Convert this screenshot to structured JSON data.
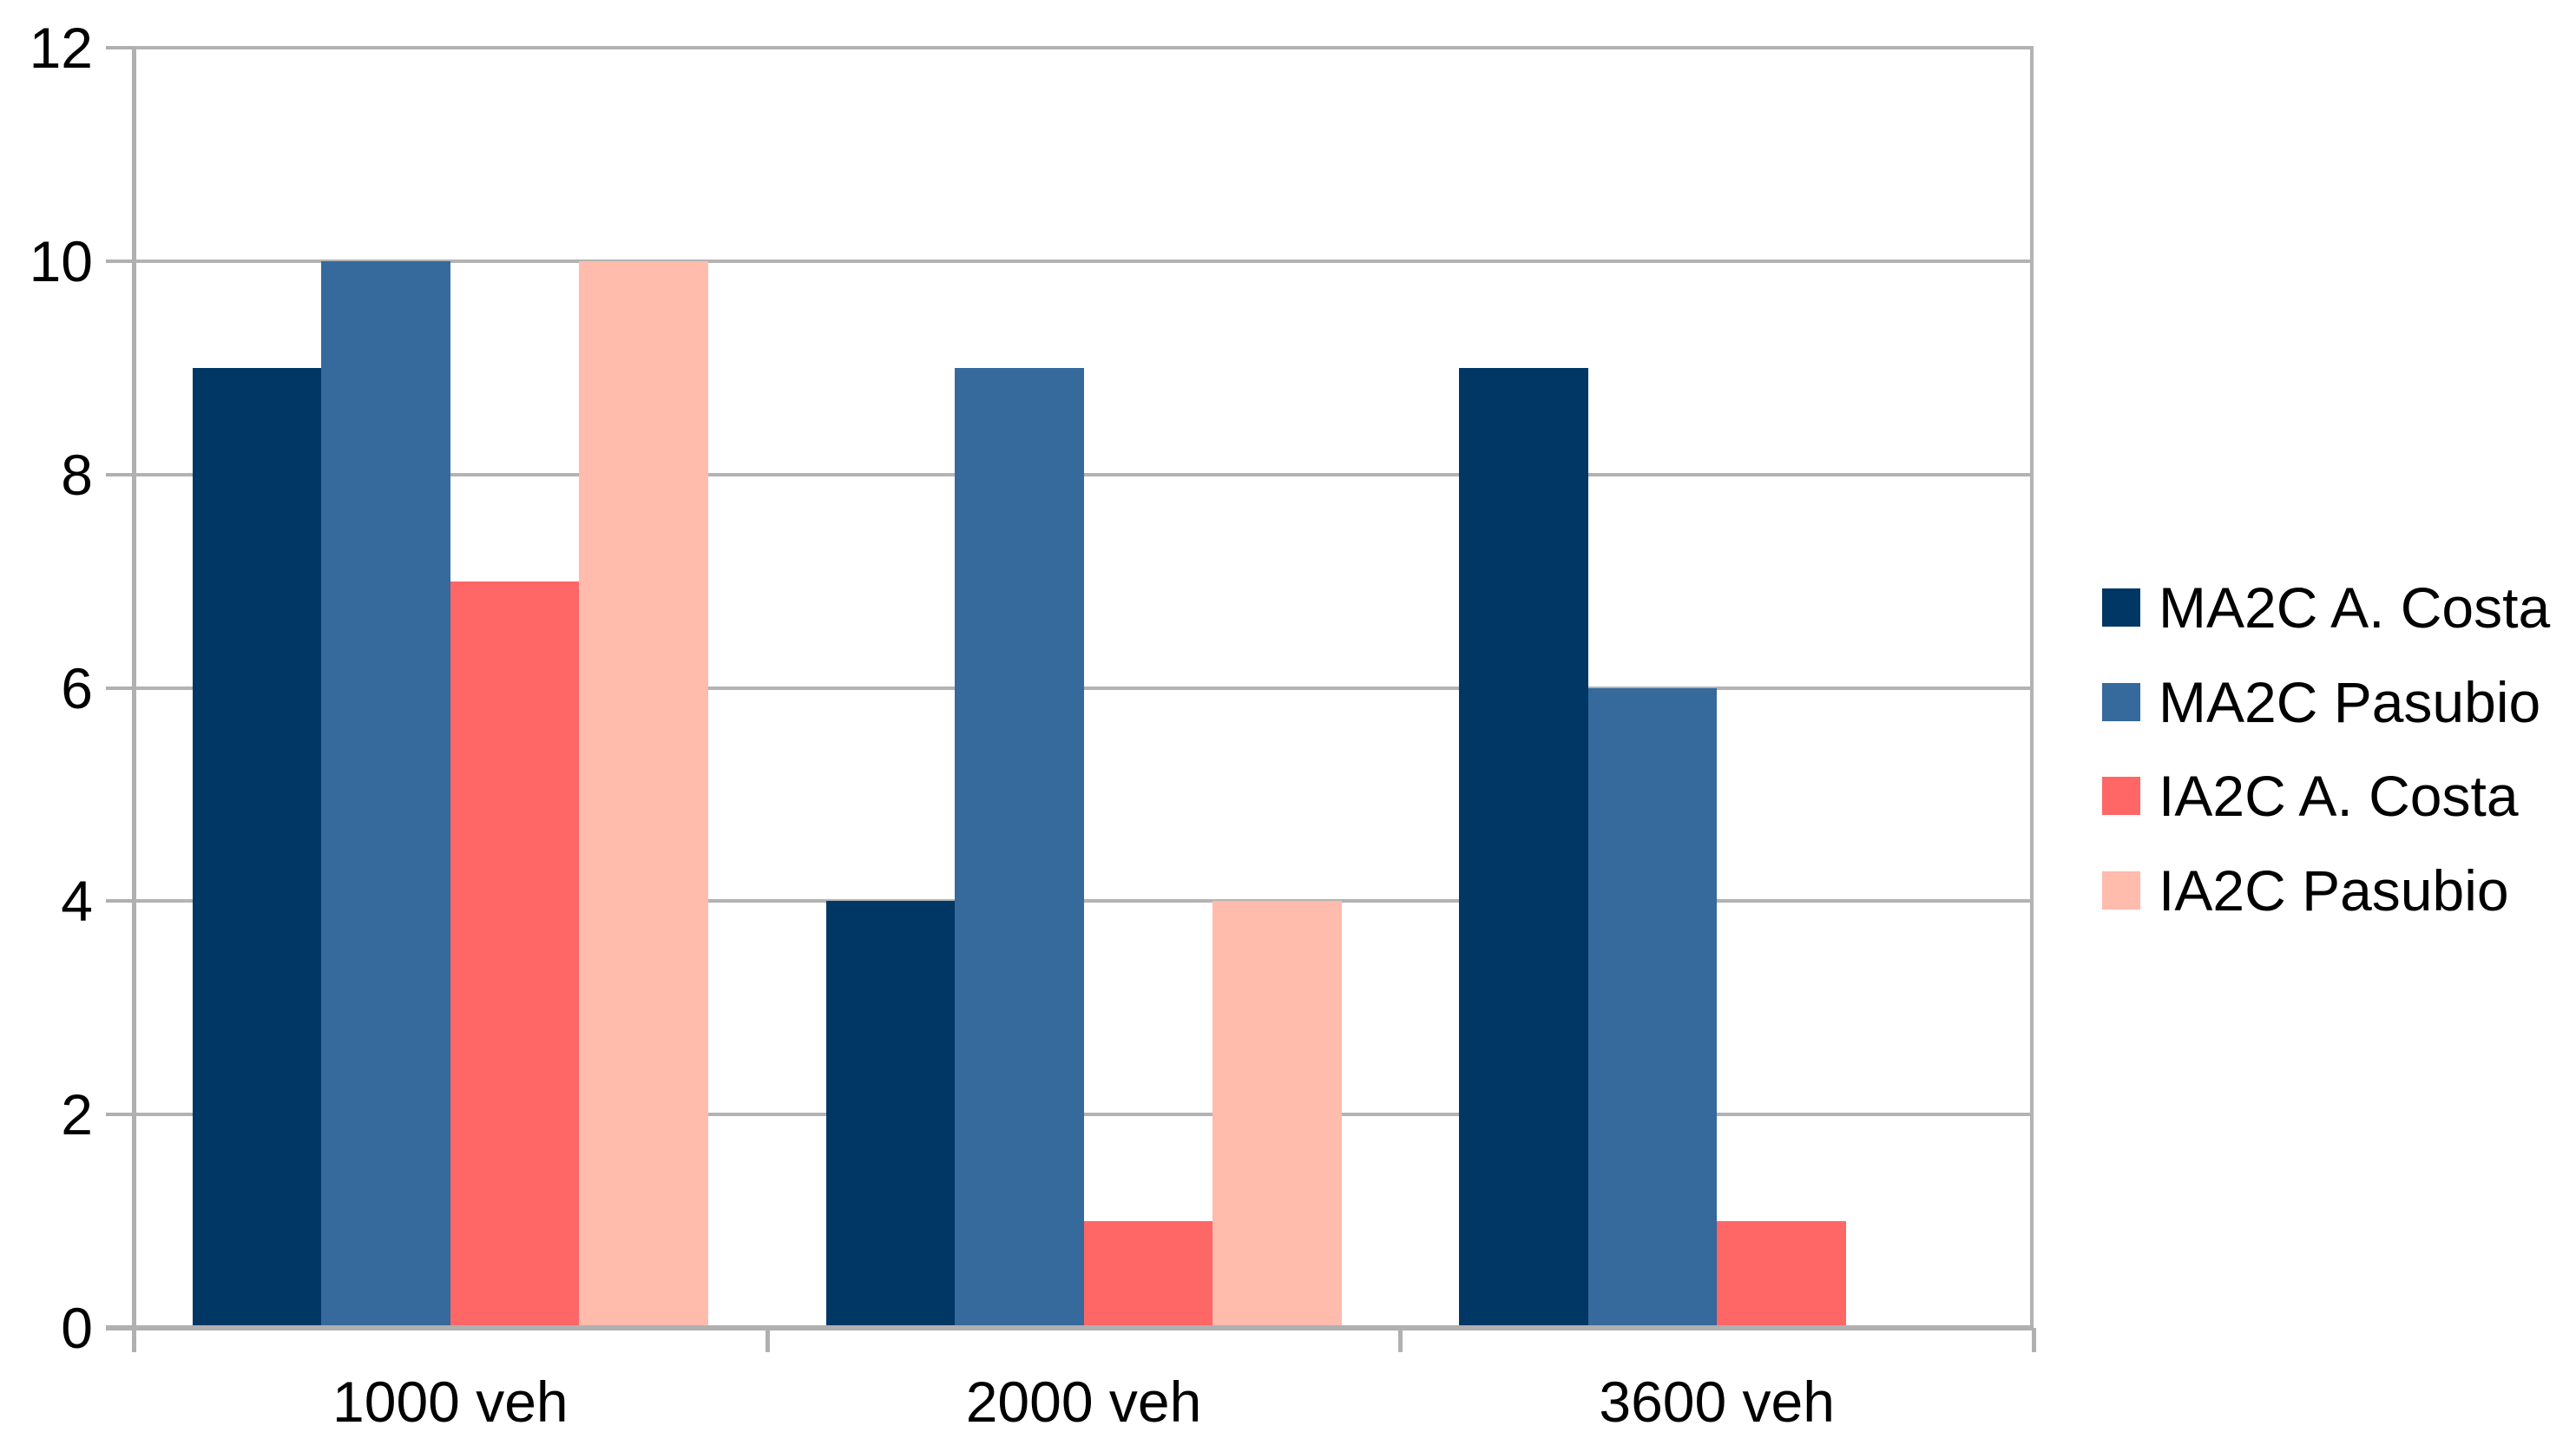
{
  "chart_data": {
    "type": "bar",
    "title": "",
    "xlabel": "",
    "ylabel": "",
    "categories": [
      "1000 veh",
      "2000 veh",
      "3600 veh"
    ],
    "series": [
      {
        "name": "MA2C A. Costa",
        "color": "#003765",
        "values": [
          9,
          4,
          9
        ]
      },
      {
        "name": "MA2C Pasubio",
        "color": "#36699C",
        "values": [
          10,
          9,
          6
        ]
      },
      {
        "name": "IA2C A. Costa",
        "color": "#FF6666",
        "values": [
          7,
          1,
          1
        ]
      },
      {
        "name": "IA2C Pasubio",
        "color": "#FFBBAC",
        "values": [
          10,
          4,
          0
        ]
      }
    ],
    "ylim": [
      0,
      12
    ],
    "yticks": [
      "0",
      "2",
      "4",
      "6",
      "8",
      "10",
      "12"
    ],
    "grid": true,
    "legend_position": "right",
    "colors": {
      "gridline": "#B3B3B3",
      "axis": "#B0B0B0",
      "text": "#000000",
      "background": "#FFFFFF"
    }
  }
}
